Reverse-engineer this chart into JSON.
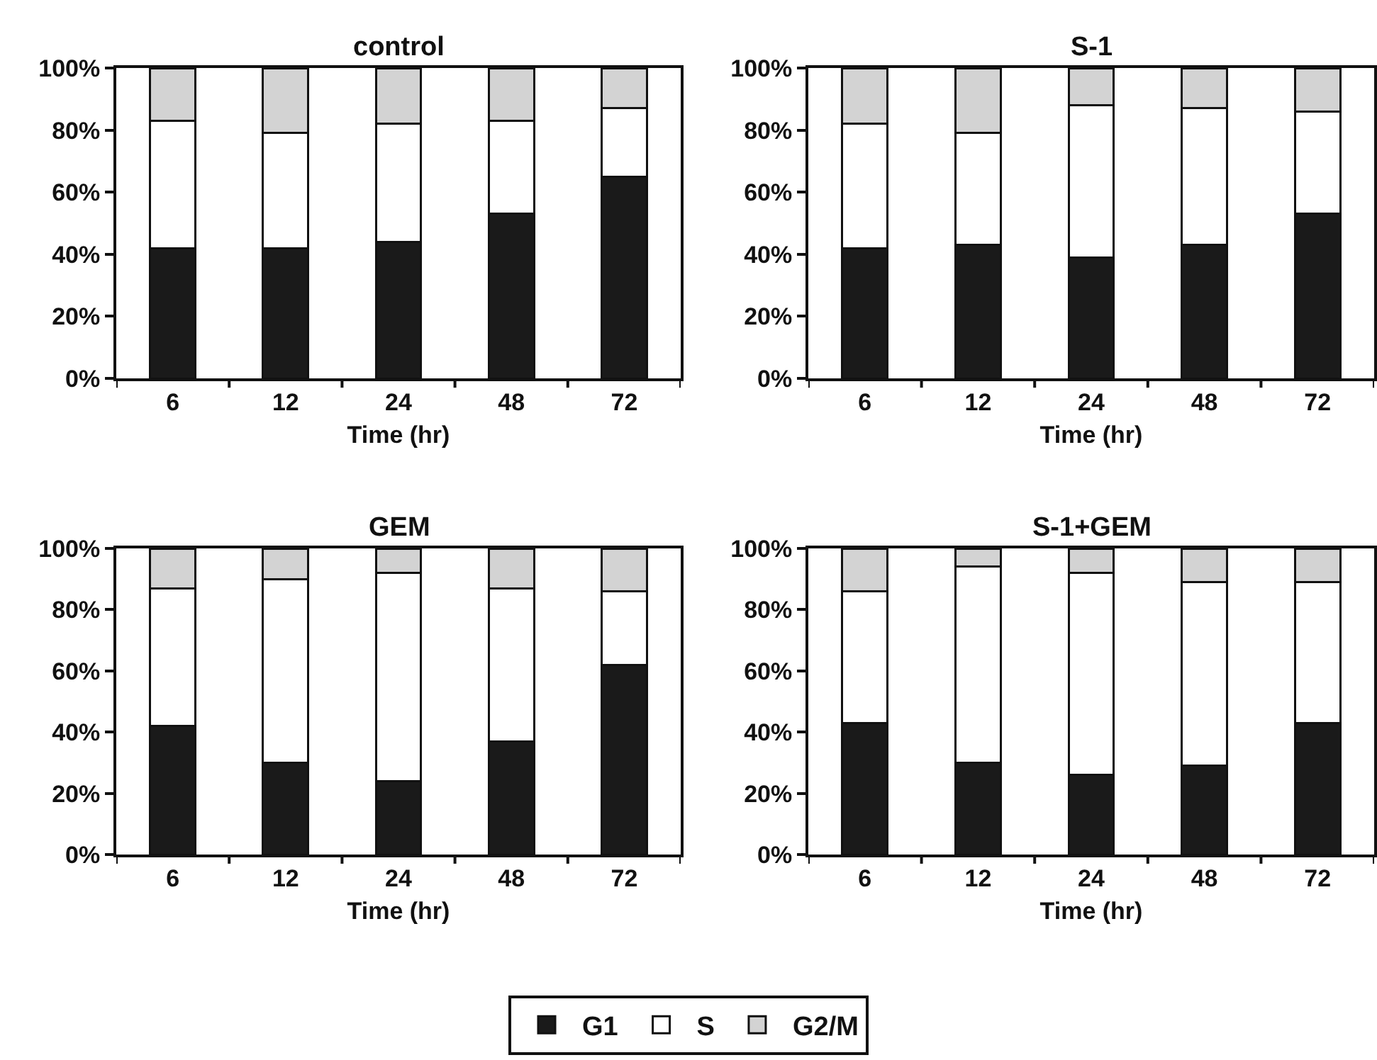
{
  "chart_data": [
    {
      "type": "bar",
      "title": "control",
      "xlabel": "Time (hr)",
      "categories": [
        "6",
        "12",
        "24",
        "48",
        "72"
      ],
      "stacked": true,
      "ylim": [
        0,
        100
      ],
      "yticks": [
        {
          "value": 0,
          "label": "0%"
        },
        {
          "value": 20,
          "label": "20%"
        },
        {
          "value": 40,
          "label": "40%"
        },
        {
          "value": 60,
          "label": "60%"
        },
        {
          "value": 80,
          "label": "80%"
        },
        {
          "value": 100,
          "label": "100%"
        }
      ],
      "grid": false,
      "legend": "bottom",
      "series": [
        {
          "name": "G1",
          "color": "#1a1a1a",
          "values": [
            42,
            42,
            44,
            53,
            65
          ]
        },
        {
          "name": "S",
          "color": "#ffffff",
          "values": [
            41,
            37,
            38,
            30,
            22
          ]
        },
        {
          "name": "G2/M",
          "color": "#d3d3d3",
          "values": [
            17,
            21,
            18,
            17,
            13
          ]
        }
      ]
    },
    {
      "type": "bar",
      "title": "S-1",
      "xlabel": "Time (hr)",
      "categories": [
        "6",
        "12",
        "24",
        "48",
        "72"
      ],
      "stacked": true,
      "ylim": [
        0,
        100
      ],
      "yticks": [
        {
          "value": 0,
          "label": "0%"
        },
        {
          "value": 20,
          "label": "20%"
        },
        {
          "value": 40,
          "label": "40%"
        },
        {
          "value": 60,
          "label": "60%"
        },
        {
          "value": 80,
          "label": "80%"
        },
        {
          "value": 100,
          "label": "100%"
        }
      ],
      "grid": false,
      "legend": "bottom",
      "series": [
        {
          "name": "G1",
          "color": "#1a1a1a",
          "values": [
            42,
            43,
            39,
            43,
            53
          ]
        },
        {
          "name": "S",
          "color": "#ffffff",
          "values": [
            40,
            36,
            49,
            44,
            33
          ]
        },
        {
          "name": "G2/M",
          "color": "#d3d3d3",
          "values": [
            18,
            21,
            12,
            13,
            14
          ]
        }
      ]
    },
    {
      "type": "bar",
      "title": "GEM",
      "xlabel": "Time (hr)",
      "categories": [
        "6",
        "12",
        "24",
        "48",
        "72"
      ],
      "stacked": true,
      "ylim": [
        0,
        100
      ],
      "yticks": [
        {
          "value": 0,
          "label": "0%"
        },
        {
          "value": 20,
          "label": "20%"
        },
        {
          "value": 40,
          "label": "40%"
        },
        {
          "value": 60,
          "label": "60%"
        },
        {
          "value": 80,
          "label": "80%"
        },
        {
          "value": 100,
          "label": "100%"
        }
      ],
      "grid": false,
      "legend": "bottom",
      "series": [
        {
          "name": "G1",
          "color": "#1a1a1a",
          "values": [
            42,
            30,
            24,
            37,
            62
          ]
        },
        {
          "name": "S",
          "color": "#ffffff",
          "values": [
            45,
            60,
            68,
            50,
            24
          ]
        },
        {
          "name": "G2/M",
          "color": "#d3d3d3",
          "values": [
            13,
            10,
            8,
            13,
            14
          ]
        }
      ]
    },
    {
      "type": "bar",
      "title": "S-1+GEM",
      "xlabel": "Time (hr)",
      "categories": [
        "6",
        "12",
        "24",
        "48",
        "72"
      ],
      "stacked": true,
      "ylim": [
        0,
        100
      ],
      "yticks": [
        {
          "value": 0,
          "label": "0%"
        },
        {
          "value": 20,
          "label": "20%"
        },
        {
          "value": 40,
          "label": "40%"
        },
        {
          "value": 60,
          "label": "60%"
        },
        {
          "value": 80,
          "label": "80%"
        },
        {
          "value": 100,
          "label": "100%"
        }
      ],
      "grid": false,
      "legend": "bottom",
      "series": [
        {
          "name": "G1",
          "color": "#1a1a1a",
          "values": [
            43,
            30,
            26,
            29,
            43
          ]
        },
        {
          "name": "S",
          "color": "#ffffff",
          "values": [
            43,
            64,
            66,
            60,
            46
          ]
        },
        {
          "name": "G2/M",
          "color": "#d3d3d3",
          "values": [
            14,
            6,
            8,
            11,
            11
          ]
        }
      ]
    }
  ]
}
